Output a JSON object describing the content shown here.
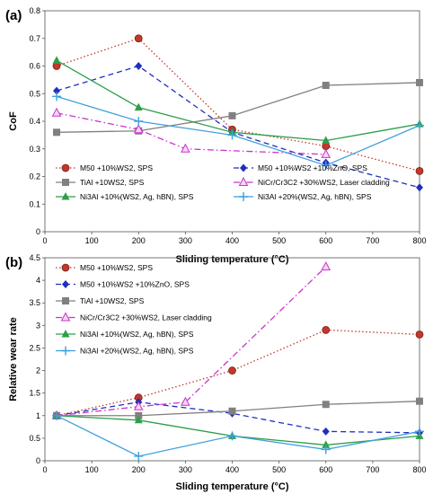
{
  "chart_data": [
    {
      "type": "line",
      "panel_label": "(a)",
      "xlabel": "Sliding temperature (°C)",
      "ylabel": "CoF",
      "xlim": [
        0,
        800
      ],
      "ylim": [
        0,
        0.8
      ],
      "xticks": [
        "0",
        "100",
        "200",
        "300",
        "400",
        "500",
        "600",
        "700",
        "800"
      ],
      "yticks": [
        "0",
        "0.1",
        "0.2",
        "0.3",
        "0.4",
        "0.5",
        "0.6",
        "0.7",
        "0.8"
      ],
      "grid": false,
      "legend_position": "bottom, inside plot",
      "series": [
        {
          "name": "M50 +10%WS2, SPS",
          "color": "#c0392b",
          "style": "dotted",
          "marker": "circle",
          "points": [
            [
              25,
              0.6
            ],
            [
              200,
              0.7
            ],
            [
              400,
              0.37
            ],
            [
              600,
              0.31
            ],
            [
              800,
              0.22
            ]
          ]
        },
        {
          "name": "M50 +10%WS2 +10%ZnO, SPS",
          "color": "#1f2fbf",
          "style": "dashed",
          "marker": "diamond",
          "points": [
            [
              25,
              0.51
            ],
            [
              200,
              0.6
            ],
            [
              400,
              0.36
            ],
            [
              600,
              0.25
            ],
            [
              800,
              0.16
            ]
          ]
        },
        {
          "name": "TiAl +10WS2, SPS",
          "color": "#808080",
          "style": "solid",
          "marker": "square",
          "points": [
            [
              25,
              0.36
            ],
            [
              200,
              0.365
            ],
            [
              400,
              0.42
            ],
            [
              600,
              0.53
            ],
            [
              800,
              0.54
            ]
          ]
        },
        {
          "name": "NiCr/Cr3C2 +30%WS2, Laser cladding",
          "color": "#cc33cc",
          "style": "dashdot",
          "marker": "triangle-open",
          "points": [
            [
              25,
              0.43
            ],
            [
              200,
              0.37
            ],
            [
              300,
              0.3
            ],
            [
              600,
              0.28
            ]
          ]
        },
        {
          "name": "Ni3Al +10%(WS2, Ag, hBN), SPS",
          "color": "#2e9e4a",
          "style": "solid",
          "marker": "triangle",
          "points": [
            [
              25,
              0.62
            ],
            [
              200,
              0.45
            ],
            [
              400,
              0.36
            ],
            [
              600,
              0.33
            ],
            [
              800,
              0.39
            ]
          ]
        },
        {
          "name": "Ni3Al +20%(WS2, Ag, hBN), SPS",
          "color": "#3fa0dd",
          "style": "solid",
          "marker": "plus",
          "points": [
            [
              25,
              0.49
            ],
            [
              200,
              0.4
            ],
            [
              400,
              0.35
            ],
            [
              600,
              0.24
            ],
            [
              800,
              0.385
            ]
          ]
        }
      ]
    },
    {
      "type": "line",
      "panel_label": "(b)",
      "xlabel": "Sliding temperature (°C)",
      "ylabel": "Relative wear rate",
      "xlim": [
        0,
        800
      ],
      "ylim": [
        0,
        4.5
      ],
      "xticks": [
        "0",
        "100",
        "200",
        "300",
        "400",
        "500",
        "600",
        "700",
        "800"
      ],
      "yticks": [
        "0",
        "0.5",
        "1",
        "1.5",
        "2",
        "2.5",
        "3",
        "3.5",
        "4",
        "4.5"
      ],
      "grid": false,
      "legend_position": "top-left, inside plot",
      "series": [
        {
          "name": "M50 +10%WS2, SPS",
          "color": "#c0392b",
          "style": "dotted",
          "marker": "circle",
          "points": [
            [
              25,
              1.0
            ],
            [
              200,
              1.4
            ],
            [
              400,
              2.0
            ],
            [
              600,
              2.9
            ],
            [
              800,
              2.8
            ]
          ]
        },
        {
          "name": "M50 +10%WS2 +10%ZnO, SPS",
          "color": "#1f2fbf",
          "style": "dashed",
          "marker": "diamond",
          "points": [
            [
              25,
              1.0
            ],
            [
              200,
              1.3
            ],
            [
              400,
              1.05
            ],
            [
              600,
              0.65
            ],
            [
              800,
              0.62
            ]
          ]
        },
        {
          "name": "TiAl +10WS2, SPS",
          "color": "#808080",
          "style": "solid",
          "marker": "square",
          "points": [
            [
              25,
              1.0
            ],
            [
              200,
              1.0
            ],
            [
              400,
              1.1
            ],
            [
              600,
              1.25
            ],
            [
              800,
              1.32
            ]
          ]
        },
        {
          "name": "NiCr/Cr3C2 +30%WS2, Laser cladding",
          "color": "#cc33cc",
          "style": "dashdot",
          "marker": "triangle-open",
          "points": [
            [
              25,
              1.0
            ],
            [
              200,
              1.2
            ],
            [
              300,
              1.3
            ],
            [
              600,
              4.3
            ]
          ]
        },
        {
          "name": "Ni3Al +10%(WS2, Ag, hBN), SPS",
          "color": "#2e9e4a",
          "style": "solid",
          "marker": "triangle",
          "points": [
            [
              25,
              1.0
            ],
            [
              200,
              0.9
            ],
            [
              400,
              0.55
            ],
            [
              600,
              0.35
            ],
            [
              800,
              0.55
            ]
          ]
        },
        {
          "name": "Ni3Al +20%(WS2, Ag, hBN), SPS",
          "color": "#3fa0dd",
          "style": "solid",
          "marker": "plus",
          "points": [
            [
              25,
              1.0
            ],
            [
              200,
              0.1
            ],
            [
              400,
              0.55
            ],
            [
              600,
              0.25
            ],
            [
              800,
              0.65
            ]
          ]
        }
      ]
    }
  ]
}
